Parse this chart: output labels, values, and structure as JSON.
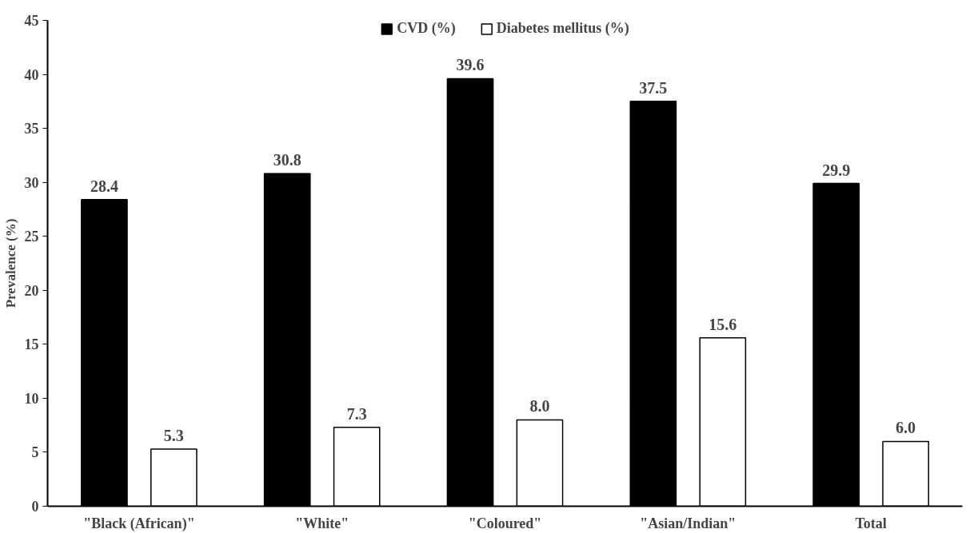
{
  "chart_data": {
    "type": "bar",
    "ylabel": "Prevalence (%)",
    "categories": [
      "\"Black (African)\"",
      "\"White\"",
      "\"Coloured\"",
      "\"Asian/Indian\"",
      "Total"
    ],
    "series": [
      {
        "name": "CVD (%)",
        "color": "#000000",
        "values": [
          28.4,
          30.8,
          39.6,
          37.5,
          29.9
        ],
        "value_labels": [
          "28.4",
          "30.8",
          "39.6",
          "37.5",
          "29.9"
        ]
      },
      {
        "name": "Diabetes mellitus (%)",
        "color": "#ffffff",
        "values": [
          5.3,
          7.3,
          8.0,
          15.6,
          6.0
        ],
        "value_labels": [
          "5.3",
          "7.3",
          "8.0",
          "15.6",
          "6.0"
        ]
      }
    ],
    "ylim": [
      0,
      45
    ],
    "yticks": [
      0,
      5,
      10,
      15,
      20,
      25,
      30,
      35,
      40,
      45
    ],
    "grid": false,
    "legend": "top"
  }
}
